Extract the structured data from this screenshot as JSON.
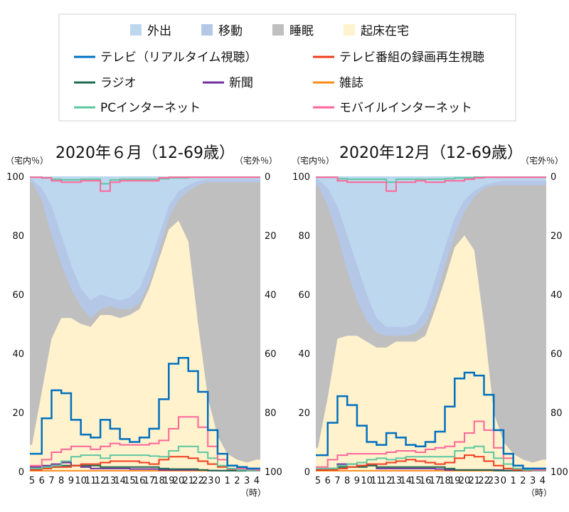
{
  "legend": {
    "areas": [
      {
        "label": "外出",
        "color": "#bdd7ee"
      },
      {
        "label": "移動",
        "color": "#b4c7e7"
      },
      {
        "label": "睡眠",
        "color": "#bfbfbf"
      },
      {
        "label": "起床在宅",
        "color": "#fff2cc"
      }
    ],
    "lines": [
      {
        "label": "テレビ（リアルタイム視聴）",
        "color": "#0070c0"
      },
      {
        "label": "テレビ番組の録画再生視聴",
        "color": "#f03c1e"
      },
      {
        "label": "ラジオ",
        "color": "#1e6b52"
      },
      {
        "label": "新聞",
        "color": "#7030a0"
      },
      {
        "label": "雑誌",
        "color": "#ff8c1a"
      },
      {
        "label": "PCインターネット",
        "color": "#5cc8a0"
      },
      {
        "label": "モバイルインターネット",
        "color": "#ff6699"
      }
    ]
  },
  "chart_data": [
    {
      "type": "area+line",
      "title": "2020年６月（12-69歳）",
      "ylabel_left": "（宅内％）",
      "ylabel_right": "（宅外％）",
      "x_unit": "（時）",
      "x_labels": [
        "5",
        "6",
        "7",
        "8",
        "9",
        "10",
        "11",
        "12",
        "13",
        "14",
        "15",
        "16",
        "17",
        "18",
        "19",
        "20",
        "21",
        "22",
        "23",
        "0",
        "1",
        "2",
        "3",
        "4"
      ],
      "y_ticks_left": [
        "0",
        "20",
        "40",
        "60",
        "80",
        "100"
      ],
      "y_ticks_right": [
        "100",
        "80",
        "60",
        "40",
        "20",
        "0"
      ],
      "ylim": [
        0,
        100
      ],
      "areas": {
        "起床在宅": [
          9,
          27,
          45,
          52,
          52,
          50,
          49,
          53,
          53,
          52,
          53,
          55,
          62,
          72,
          82,
          85,
          78,
          50,
          25,
          12,
          6,
          4,
          3,
          4
        ],
        "睡眠": [
          89,
          65,
          35,
          18,
          10,
          6,
          3,
          2,
          3,
          3,
          2,
          2,
          2,
          3,
          4,
          7,
          17,
          47,
          73,
          86,
          92,
          94,
          95,
          94
        ],
        "移動": [
          1,
          4,
          10,
          10,
          8,
          6,
          6,
          5,
          3,
          3,
          4,
          5,
          6,
          5,
          4,
          3,
          2,
          1.5,
          1,
          1,
          1,
          1,
          1,
          1
        ],
        "外出": [
          1,
          4,
          10,
          20,
          30,
          38,
          42,
          40,
          41,
          42,
          41,
          38,
          30,
          20,
          10,
          5,
          3,
          1.5,
          1,
          1,
          1,
          1,
          1,
          1
        ]
      },
      "in_home_series": [
        {
          "name": "テレビ（リアルタイム視聴）",
          "values": [
            6,
            18,
            27.5,
            26.5,
            17.5,
            12.5,
            11.5,
            17.5,
            14.5,
            11,
            10,
            11.5,
            14.5,
            24.5,
            36.5,
            38.5,
            34,
            27,
            14,
            6,
            2,
            1.5,
            1,
            1
          ]
        },
        {
          "name": "テレビ番組の録画再生視聴",
          "values": [
            0.5,
            1,
            1.5,
            1.5,
            2,
            2.5,
            2.5,
            3,
            3.5,
            3.5,
            3.5,
            3,
            2.5,
            4,
            5,
            5,
            4.5,
            3.5,
            2.5,
            1.5,
            0.8,
            0.5,
            0.3,
            0.3
          ]
        },
        {
          "name": "ラジオ",
          "values": [
            1,
            1.5,
            1.5,
            2,
            2,
            2,
            2,
            1.5,
            1.5,
            1.5,
            1.5,
            1.5,
            1.5,
            1,
            0.8,
            0.8,
            0.8,
            0.5,
            0.3,
            0.2,
            0.2,
            0.2,
            0.2,
            0.2
          ]
        },
        {
          "name": "新聞",
          "values": [
            1.5,
            2,
            2.5,
            3,
            2,
            1.5,
            1,
            1,
            1,
            1,
            0.8,
            0.8,
            0.8,
            0.5,
            0.5,
            0.5,
            0.5,
            0.5,
            0.3,
            0.3,
            0.3,
            0.3,
            0.3,
            0.3
          ]
        },
        {
          "name": "雑誌",
          "values": [
            0.2,
            0.2,
            0.2,
            0.2,
            0.2,
            0.2,
            0.2,
            0.2,
            0.2,
            0.2,
            0.2,
            0.2,
            0.2,
            0.2,
            0.2,
            0.2,
            0.2,
            0.2,
            0.2,
            0.2,
            0.2,
            0.2,
            0.2,
            0.2
          ]
        },
        {
          "name": "PCインターネット",
          "values": [
            1,
            1.5,
            2,
            3.5,
            5,
            5.5,
            5.5,
            4.5,
            5.5,
            5.5,
            5.5,
            5.5,
            5.2,
            5,
            7,
            8.5,
            8.5,
            6.5,
            4.5,
            2,
            1,
            0.5,
            0.3,
            0.3
          ]
        },
        {
          "name": "モバイルインターネット",
          "values": [
            2,
            4,
            6.5,
            7.5,
            8.5,
            8.5,
            7.5,
            8.5,
            9.5,
            9,
            9,
            9,
            9.5,
            10.5,
            14.5,
            18.5,
            18.5,
            15,
            8.5,
            4,
            2,
            1,
            0.7,
            0.5
          ]
        }
      ],
      "out_home_series": [
        {
          "name": "PCインターネット",
          "values": [
            0.3,
            0.5,
            1,
            1.2,
            1.2,
            1,
            1,
            2.5,
            1.2,
            1,
            1,
            1,
            1,
            0.8,
            0.5,
            0.5,
            0.3,
            0.3,
            0.3,
            0.3,
            0.3,
            0.3,
            0.3,
            0.3
          ]
        },
        {
          "name": "モバイルインターネット",
          "values": [
            0.3,
            0.5,
            1.5,
            2,
            2,
            1.5,
            1.5,
            5,
            2,
            1.5,
            1.5,
            1.5,
            1.5,
            0.5,
            0.3,
            0.3,
            0.3,
            0.3,
            0.3,
            0.3,
            0.3,
            0.3,
            0.3,
            0.3
          ]
        }
      ]
    },
    {
      "type": "area+line",
      "title": "2020年12月（12-69歳）",
      "ylabel_left": "（宅内％）",
      "ylabel_right": "（宅外％）",
      "x_unit": "（時）",
      "x_labels": [
        "5",
        "6",
        "7",
        "8",
        "9",
        "10",
        "11",
        "12",
        "13",
        "14",
        "15",
        "16",
        "17",
        "18",
        "19",
        "20",
        "21",
        "22",
        "23",
        "0",
        "1",
        "2",
        "3",
        "4"
      ],
      "y_ticks_left": [
        "0",
        "20",
        "40",
        "60",
        "80",
        "100"
      ],
      "y_ticks_right": [
        "100",
        "80",
        "60",
        "40",
        "20",
        "0"
      ],
      "ylim": [
        0,
        100
      ],
      "areas": {
        "起床在宅": [
          8,
          25,
          45,
          46,
          46,
          44,
          42,
          42,
          44,
          44,
          44,
          46,
          55,
          65,
          76,
          80,
          75,
          50,
          20,
          10,
          6,
          4,
          3,
          4
        ],
        "睡眠": [
          89,
          65,
          35,
          22,
          12,
          7,
          5,
          4,
          2,
          2,
          3,
          4,
          3,
          5,
          4,
          8,
          18,
          46,
          77,
          87,
          91,
          93,
          94,
          93
        ],
        "移動": [
          2,
          6,
          10,
          12,
          12,
          9,
          5,
          3,
          3,
          3,
          3,
          5,
          7,
          6,
          6,
          4,
          2,
          1,
          1,
          1.5,
          1.5,
          1.5,
          1.5,
          1.5
        ],
        "外出": [
          1,
          4,
          10,
          20,
          30,
          40,
          48,
          51,
          51,
          51,
          50,
          45,
          35,
          24,
          14,
          8,
          5,
          3,
          2,
          1.5,
          1.5,
          1.5,
          1.5,
          1.5
        ]
      },
      "in_home_series": [
        {
          "name": "テレビ（リアルタイム視聴）",
          "values": [
            5.5,
            16.5,
            25.5,
            22.5,
            15.5,
            10,
            9,
            13,
            11.5,
            9,
            8.5,
            10,
            13.5,
            22,
            31.5,
            33.5,
            32.5,
            26,
            14,
            6,
            2,
            1,
            1,
            1
          ]
        },
        {
          "name": "テレビ番組の録画再生視聴",
          "values": [
            0.5,
            0.5,
            1,
            1.5,
            2,
            2.5,
            2.5,
            3,
            3.5,
            4,
            3.5,
            3,
            2.5,
            3,
            4.5,
            5.5,
            5,
            3.5,
            2,
            1,
            0.5,
            0.3,
            0.2,
            0.2
          ]
        },
        {
          "name": "ラジオ",
          "values": [
            0.5,
            1,
            1.5,
            1.5,
            1.5,
            2,
            1.5,
            1.5,
            1.5,
            1.5,
            1.5,
            1.5,
            1.5,
            1,
            0.5,
            0.5,
            0.5,
            0.5,
            0.3,
            0.3,
            0.3,
            0.3,
            0.3,
            0.3
          ]
        },
        {
          "name": "新聞",
          "values": [
            0.5,
            1,
            2.5,
            2.5,
            2,
            2,
            1,
            1,
            1,
            1,
            1,
            1,
            0.8,
            0.5,
            0.5,
            0.5,
            0.5,
            0.5,
            0.5,
            0.3,
            0.3,
            0.3,
            0.3,
            0.3
          ]
        },
        {
          "name": "雑誌",
          "values": [
            0.2,
            0.2,
            0.2,
            0.2,
            0.2,
            0.2,
            0.2,
            0.2,
            0.2,
            0.2,
            0.2,
            0.2,
            0.2,
            0.2,
            0.2,
            0.2,
            0.2,
            0.2,
            0.2,
            0.2,
            0.2,
            0.2,
            0.2,
            0.2
          ]
        },
        {
          "name": "PCインターネット",
          "values": [
            1,
            1,
            2,
            2.5,
            3,
            4,
            4.5,
            4,
            4.5,
            5,
            5,
            5,
            5,
            5,
            7,
            8,
            8.5,
            6.5,
            4.5,
            2.5,
            1,
            0.5,
            0.3,
            0.3
          ]
        },
        {
          "name": "モバイルインターネット",
          "values": [
            1.5,
            4,
            5.5,
            6,
            6,
            6,
            6,
            6.5,
            7,
            7,
            6.5,
            7.5,
            8,
            8.5,
            10,
            13,
            17,
            14,
            8,
            4.5,
            2,
            1,
            0.5,
            0.5
          ]
        }
      ],
      "out_home_series": [
        {
          "name": "PCインターネット",
          "values": [
            0.3,
            0.3,
            0.8,
            1,
            1,
            1,
            1,
            2,
            1,
            1,
            1,
            1,
            1,
            0.8,
            0.5,
            0.5,
            0.3,
            0.3,
            0.3,
            0.3,
            0.3,
            0.3,
            0.3,
            0.3
          ]
        },
        {
          "name": "モバイルインターネット",
          "values": [
            0.3,
            0.3,
            1.5,
            2,
            2,
            2,
            2,
            5,
            2,
            2,
            1.5,
            2,
            2,
            1.5,
            1.5,
            1,
            0.5,
            0.3,
            0.3,
            0.3,
            0.3,
            0.3,
            0.3,
            0.3
          ]
        }
      ]
    }
  ]
}
